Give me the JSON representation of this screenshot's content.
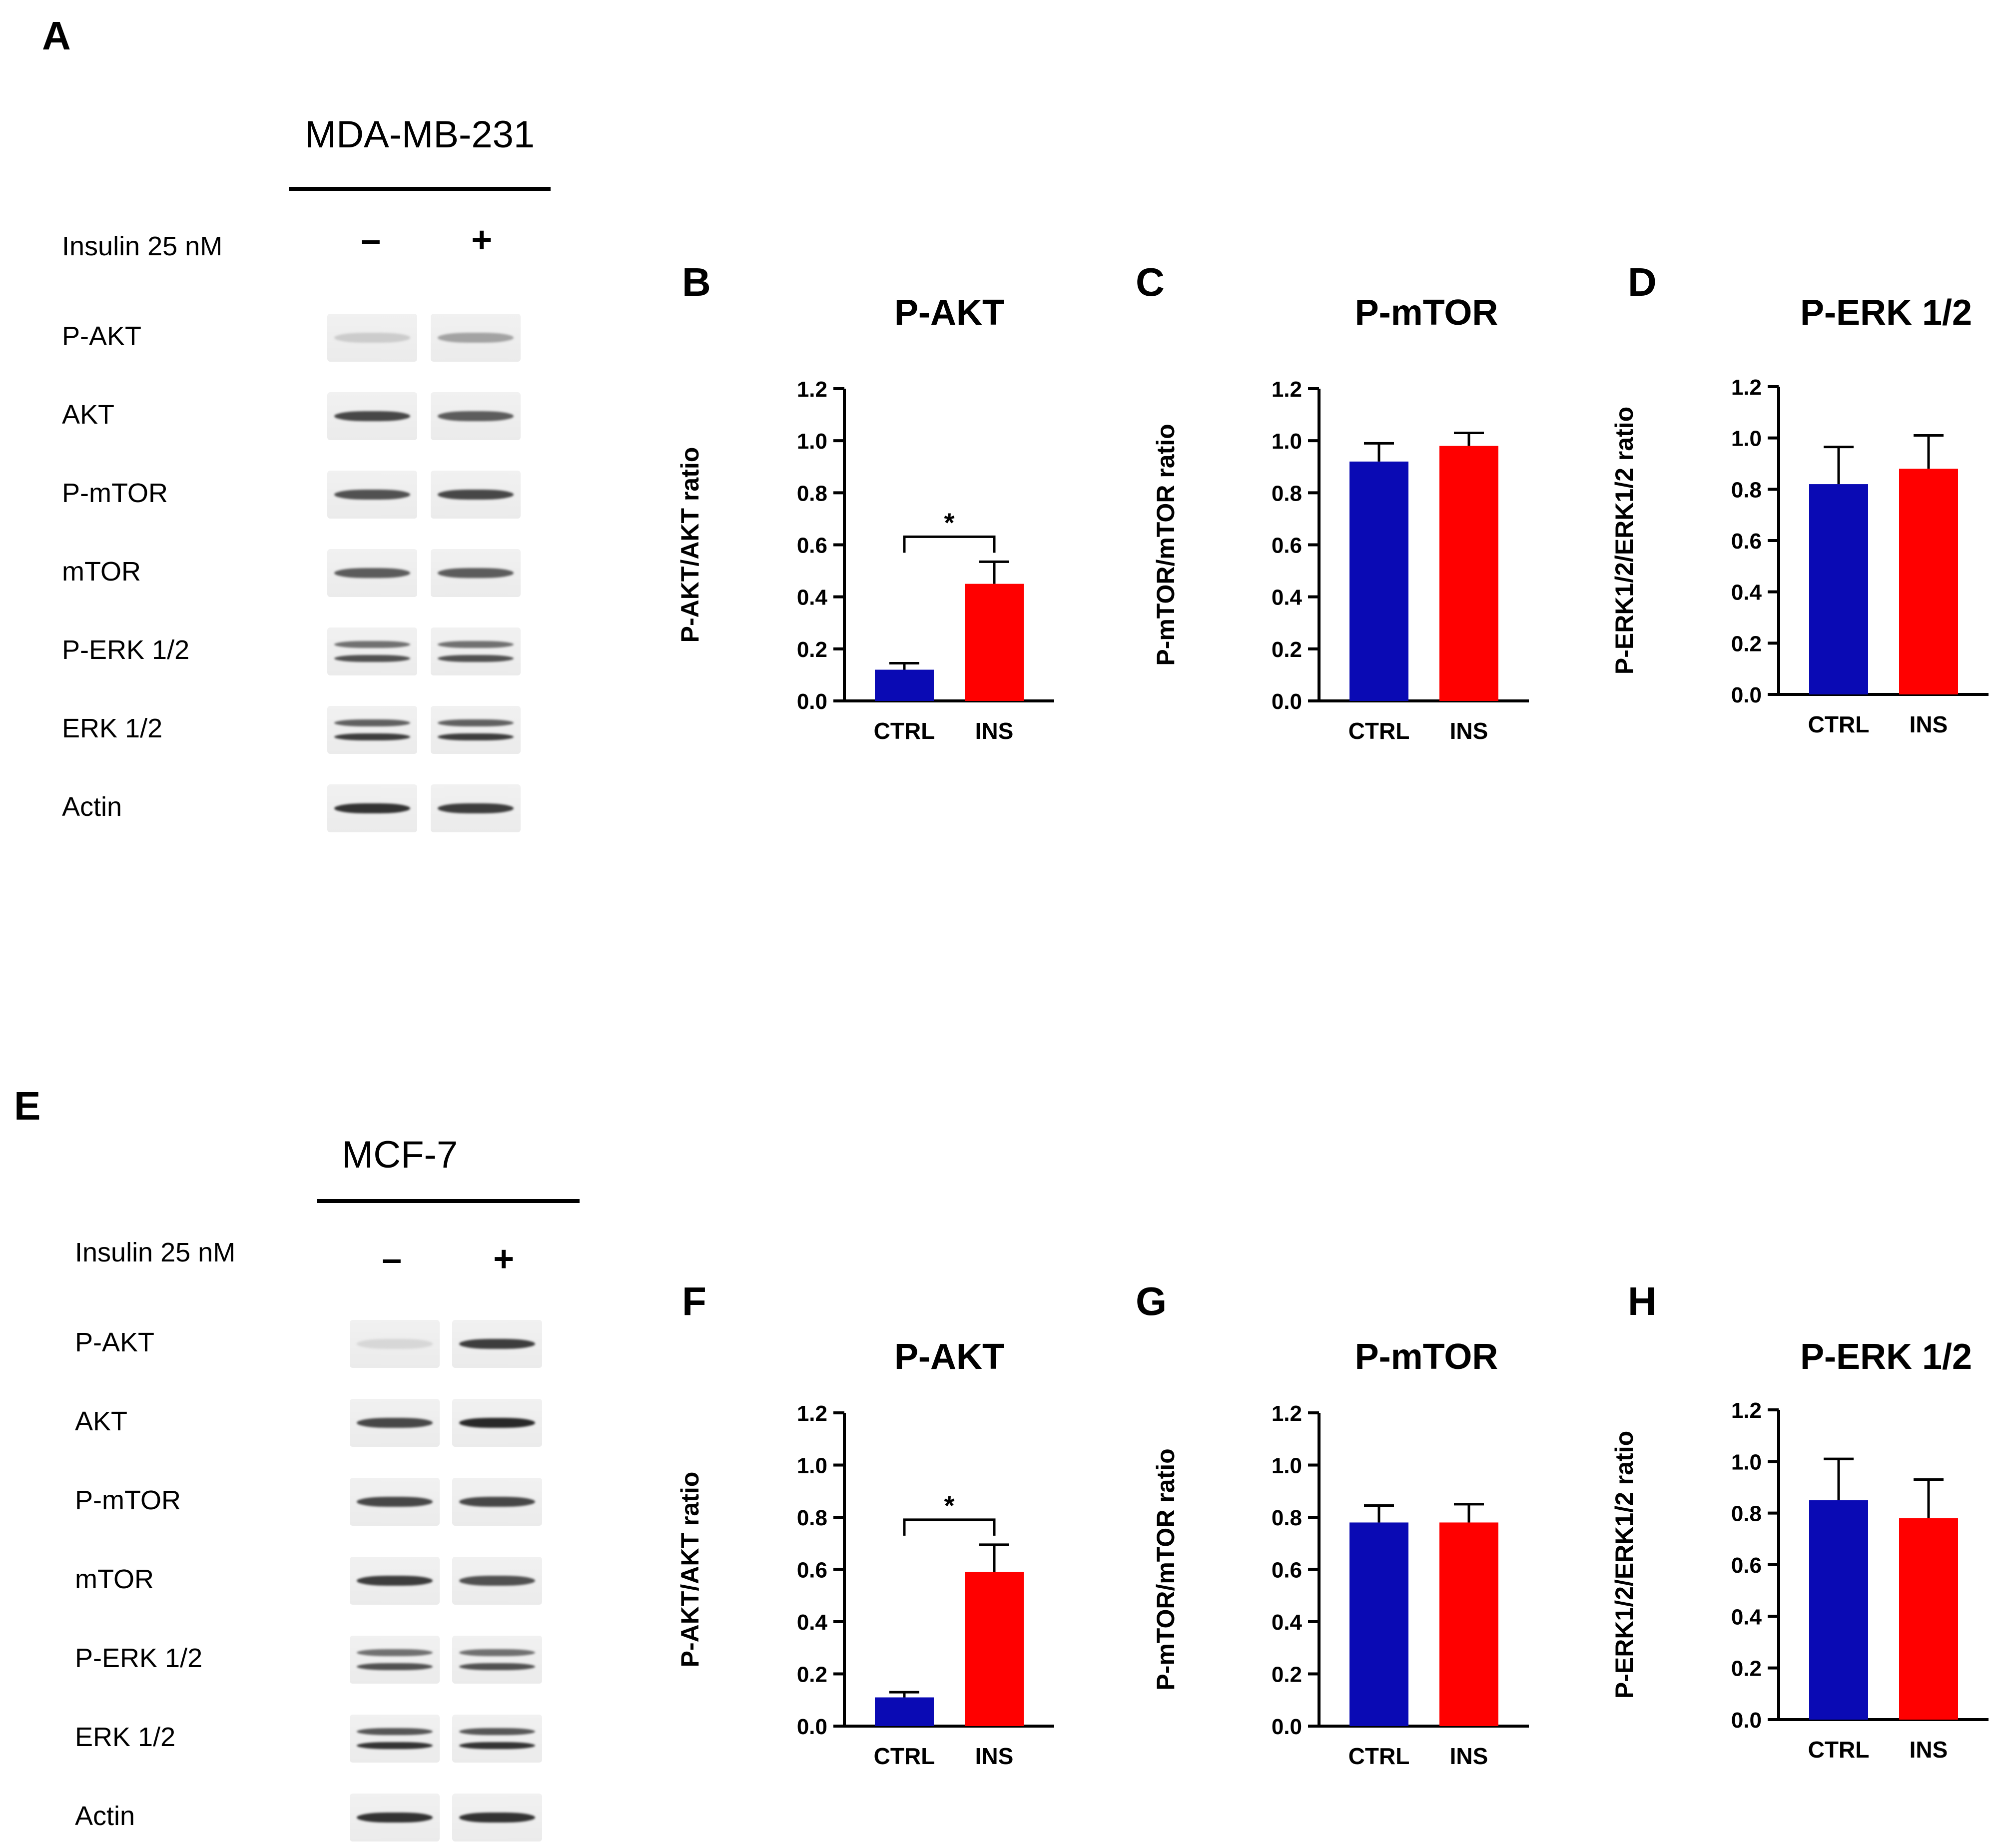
{
  "figure_labels": {
    "A": "A",
    "E": "E"
  },
  "blots": [
    {
      "panel_label": "A",
      "cell_line": "MDA-MB-231",
      "treatment_label": "Insulin 25 nM",
      "minus_sign": "–",
      "plus_sign": "+",
      "rows": [
        {
          "label": "P-AKT",
          "ctrl": 0.15,
          "ins": 0.35,
          "double": false
        },
        {
          "label": "AKT",
          "ctrl": 0.8,
          "ins": 0.7,
          "double": false
        },
        {
          "label": "P-mTOR",
          "ctrl": 0.75,
          "ins": 0.8,
          "double": false
        },
        {
          "label": "mTOR",
          "ctrl": 0.7,
          "ins": 0.7,
          "double": false
        },
        {
          "label": "P-ERK 1/2",
          "ctrl": 0.75,
          "ins": 0.75,
          "double": true
        },
        {
          "label": "ERK 1/2",
          "ctrl": 0.85,
          "ins": 0.85,
          "double": true
        },
        {
          "label": "Actin",
          "ctrl": 0.9,
          "ins": 0.85,
          "double": false
        }
      ]
    },
    {
      "panel_label": "E",
      "cell_line": "MCF-7",
      "treatment_label": "Insulin 25 nM",
      "minus_sign": "–",
      "plus_sign": "+",
      "rows": [
        {
          "label": "P-AKT",
          "ctrl": 0.1,
          "ins": 0.85,
          "double": false
        },
        {
          "label": "AKT",
          "ctrl": 0.8,
          "ins": 0.95,
          "double": false
        },
        {
          "label": "P-mTOR",
          "ctrl": 0.8,
          "ins": 0.8,
          "double": false
        },
        {
          "label": "mTOR",
          "ctrl": 0.85,
          "ins": 0.75,
          "double": false
        },
        {
          "label": "P-ERK 1/2",
          "ctrl": 0.75,
          "ins": 0.75,
          "double": true
        },
        {
          "label": "ERK 1/2",
          "ctrl": 0.9,
          "ins": 0.9,
          "double": true
        },
        {
          "label": "Actin",
          "ctrl": 0.9,
          "ins": 0.9,
          "double": false
        }
      ]
    }
  ],
  "colors": {
    "ctrl": "#0a0ab4",
    "ins": "#ff0000",
    "axis": "#000000"
  },
  "chart_data": [
    {
      "panel": "B",
      "type": "bar",
      "title": "P-AKT",
      "ylabel": "P-AKT/AKT ratio",
      "categories": [
        "CTRL",
        "INS"
      ],
      "values": [
        0.12,
        0.45
      ],
      "errors": [
        0.025,
        0.085
      ],
      "ylim": [
        0,
        1.2
      ],
      "yticks": [
        "0.0",
        "0.2",
        "0.4",
        "0.6",
        "0.8",
        "1.0",
        "1.2"
      ],
      "significance": "*"
    },
    {
      "panel": "C",
      "type": "bar",
      "title": "P-mTOR",
      "ylabel": "P-mTOR/mTOR ratio",
      "categories": [
        "CTRL",
        "INS"
      ],
      "values": [
        0.92,
        0.98
      ],
      "errors": [
        0.07,
        0.05
      ],
      "ylim": [
        0,
        1.2
      ],
      "yticks": [
        "0.0",
        "0.2",
        "0.4",
        "0.6",
        "0.8",
        "1.0",
        "1.2"
      ],
      "significance": ""
    },
    {
      "panel": "D",
      "type": "bar",
      "title": "P-ERK 1/2",
      "ylabel": "P-ERK1/2/ERK1/2 ratio",
      "categories": [
        "CTRL",
        "INS"
      ],
      "values": [
        0.82,
        0.88
      ],
      "errors": [
        0.145,
        0.13
      ],
      "ylim": [
        0,
        1.2
      ],
      "yticks": [
        "0.0",
        "0.2",
        "0.4",
        "0.6",
        "0.8",
        "1.0",
        "1.2"
      ],
      "significance": ""
    },
    {
      "panel": "F",
      "type": "bar",
      "title": "P-AKT",
      "ylabel": "P-AKT/AKT ratio",
      "categories": [
        "CTRL",
        "INS"
      ],
      "values": [
        0.11,
        0.59
      ],
      "errors": [
        0.02,
        0.105
      ],
      "ylim": [
        0,
        1.2
      ],
      "yticks": [
        "0.0",
        "0.2",
        "0.4",
        "0.6",
        "0.8",
        "1.0",
        "1.2"
      ],
      "significance": "*"
    },
    {
      "panel": "G",
      "type": "bar",
      "title": "P-mTOR",
      "ylabel": "P-mTOR/mTOR ratio",
      "categories": [
        "CTRL",
        "INS"
      ],
      "values": [
        0.78,
        0.78
      ],
      "errors": [
        0.065,
        0.07
      ],
      "ylim": [
        0,
        1.2
      ],
      "yticks": [
        "0.0",
        "0.2",
        "0.4",
        "0.6",
        "0.8",
        "1.0",
        "1.2"
      ],
      "significance": ""
    },
    {
      "panel": "H",
      "type": "bar",
      "title": "P-ERK 1/2",
      "ylabel": "P-ERK1/2/ERK1/2 ratio",
      "categories": [
        "CTRL",
        "INS"
      ],
      "values": [
        0.85,
        0.78
      ],
      "errors": [
        0.16,
        0.15
      ],
      "ylim": [
        0,
        1.2
      ],
      "yticks": [
        "0.0",
        "0.2",
        "0.4",
        "0.6",
        "0.8",
        "1.0",
        "1.2"
      ],
      "significance": ""
    }
  ]
}
